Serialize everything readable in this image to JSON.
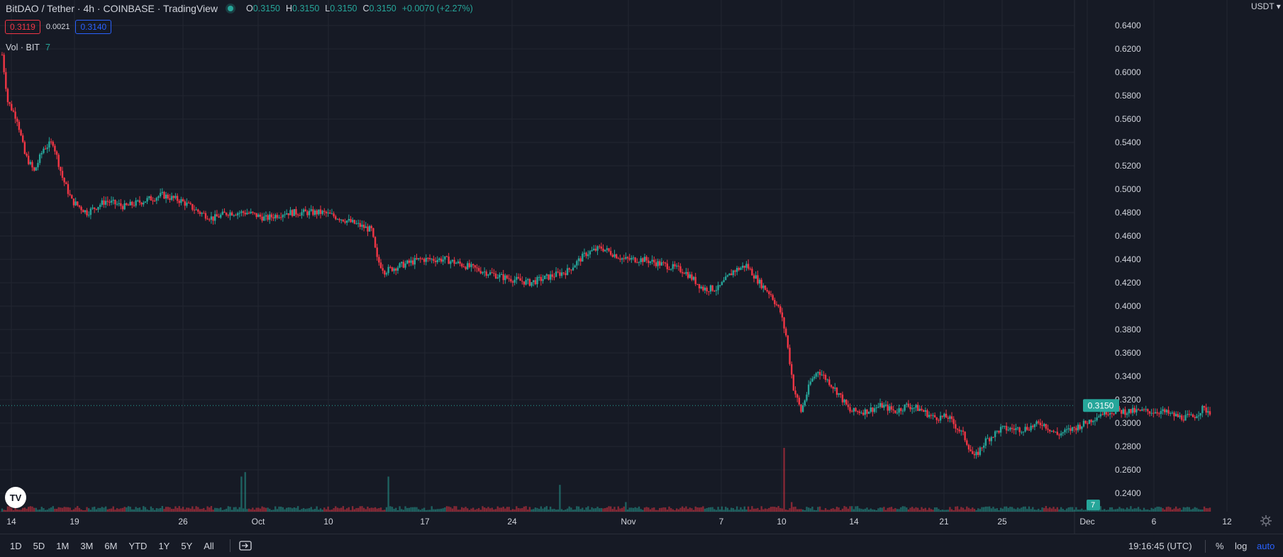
{
  "header": {
    "title": "BitDAO / Tether · 4h · COINBASE · TradingView",
    "ohlc": [
      {
        "k": "O",
        "v": "0.3150"
      },
      {
        "k": "H",
        "v": "0.3150"
      },
      {
        "k": "L",
        "v": "0.3150"
      },
      {
        "k": "C",
        "v": "0.3150"
      }
    ],
    "change": "+0.0070 (+2.27%)"
  },
  "prices": {
    "bid": "0.3119",
    "spread": "0.0021",
    "ask": "0.3140"
  },
  "volume_legend": {
    "label": "Vol · BIT",
    "value": "7"
  },
  "currency": "USDT",
  "colors": {
    "bg": "#161a25",
    "grid": "#222631",
    "up": "#26a69a",
    "down": "#f23645",
    "accent": "#2962ff",
    "text": "#d1d4dc"
  },
  "chart_data": {
    "type": "candlestick",
    "y_ticks": [
      "0.6400",
      "0.6200",
      "0.6000",
      "0.5800",
      "0.5600",
      "0.5400",
      "0.5200",
      "0.5000",
      "0.4800",
      "0.4600",
      "0.4400",
      "0.4200",
      "0.4000",
      "0.3800",
      "0.3600",
      "0.3400",
      "0.3200",
      "0.3000",
      "0.2800",
      "0.2600",
      "0.2400"
    ],
    "x_ticks": [
      "14",
      "19",
      "26",
      "Oct",
      "10",
      "17",
      "24",
      "Nov",
      "7",
      "10",
      "14",
      "21",
      "25",
      "Dec",
      "6",
      "12"
    ],
    "current_price": "0.3150",
    "volume_label": "7",
    "anchors": [
      [
        0,
        0.615
      ],
      [
        3,
        0.575
      ],
      [
        8,
        0.56
      ],
      [
        12,
        0.53
      ],
      [
        17,
        0.515
      ],
      [
        22,
        0.535
      ],
      [
        27,
        0.54
      ],
      [
        32,
        0.51
      ],
      [
        37,
        0.49
      ],
      [
        45,
        0.48
      ],
      [
        55,
        0.49
      ],
      [
        65,
        0.485
      ],
      [
        75,
        0.49
      ],
      [
        85,
        0.495
      ],
      [
        95,
        0.49
      ],
      [
        105,
        0.48
      ],
      [
        112,
        0.475
      ],
      [
        120,
        0.48
      ],
      [
        130,
        0.48
      ],
      [
        140,
        0.475
      ],
      [
        150,
        0.48
      ],
      [
        160,
        0.48
      ],
      [
        170,
        0.48
      ],
      [
        180,
        0.475
      ],
      [
        188,
        0.47
      ],
      [
        196,
        0.465
      ],
      [
        199,
        0.44
      ],
      [
        203,
        0.43
      ],
      [
        212,
        0.435
      ],
      [
        222,
        0.44
      ],
      [
        235,
        0.44
      ],
      [
        245,
        0.435
      ],
      [
        255,
        0.43
      ],
      [
        265,
        0.425
      ],
      [
        280,
        0.42
      ],
      [
        290,
        0.425
      ],
      [
        300,
        0.43
      ],
      [
        310,
        0.445
      ],
      [
        318,
        0.45
      ],
      [
        330,
        0.44
      ],
      [
        340,
        0.44
      ],
      [
        352,
        0.435
      ],
      [
        362,
        0.43
      ],
      [
        372,
        0.415
      ],
      [
        380,
        0.415
      ],
      [
        388,
        0.43
      ],
      [
        395,
        0.435
      ],
      [
        402,
        0.42
      ],
      [
        408,
        0.41
      ],
      [
        413,
        0.395
      ],
      [
        416,
        0.375
      ],
      [
        420,
        0.33
      ],
      [
        424,
        0.31
      ],
      [
        429,
        0.335
      ],
      [
        433,
        0.345
      ],
      [
        439,
        0.335
      ],
      [
        444,
        0.325
      ],
      [
        450,
        0.31
      ],
      [
        458,
        0.31
      ],
      [
        467,
        0.315
      ],
      [
        474,
        0.31
      ],
      [
        480,
        0.315
      ],
      [
        487,
        0.312
      ],
      [
        494,
        0.305
      ],
      [
        502,
        0.305
      ],
      [
        510,
        0.29
      ],
      [
        516,
        0.27
      ],
      [
        522,
        0.285
      ],
      [
        530,
        0.295
      ],
      [
        542,
        0.295
      ],
      [
        552,
        0.3
      ],
      [
        560,
        0.29
      ],
      [
        568,
        0.295
      ],
      [
        575,
        0.3
      ],
      [
        585,
        0.31
      ],
      [
        595,
        0.31
      ],
      [
        605,
        0.31
      ],
      [
        615,
        0.31
      ],
      [
        625,
        0.305
      ],
      [
        632,
        0.305
      ],
      [
        637,
        0.312
      ],
      [
        641,
        0.31
      ]
    ],
    "volume_spikes": [
      [
        127,
        0.55
      ],
      [
        129,
        0.62
      ],
      [
        205,
        0.55
      ],
      [
        296,
        0.42
      ],
      [
        331,
        0.15
      ],
      [
        415,
        1.0
      ],
      [
        419,
        0.15
      ]
    ]
  },
  "timeframes": [
    "1D",
    "5D",
    "1M",
    "3M",
    "6M",
    "YTD",
    "1Y",
    "5Y",
    "All"
  ],
  "clock": "19:16:45 (UTC)",
  "scale_options": {
    "pct": "%",
    "log": "log",
    "auto": "auto"
  },
  "logo_text": "TV"
}
